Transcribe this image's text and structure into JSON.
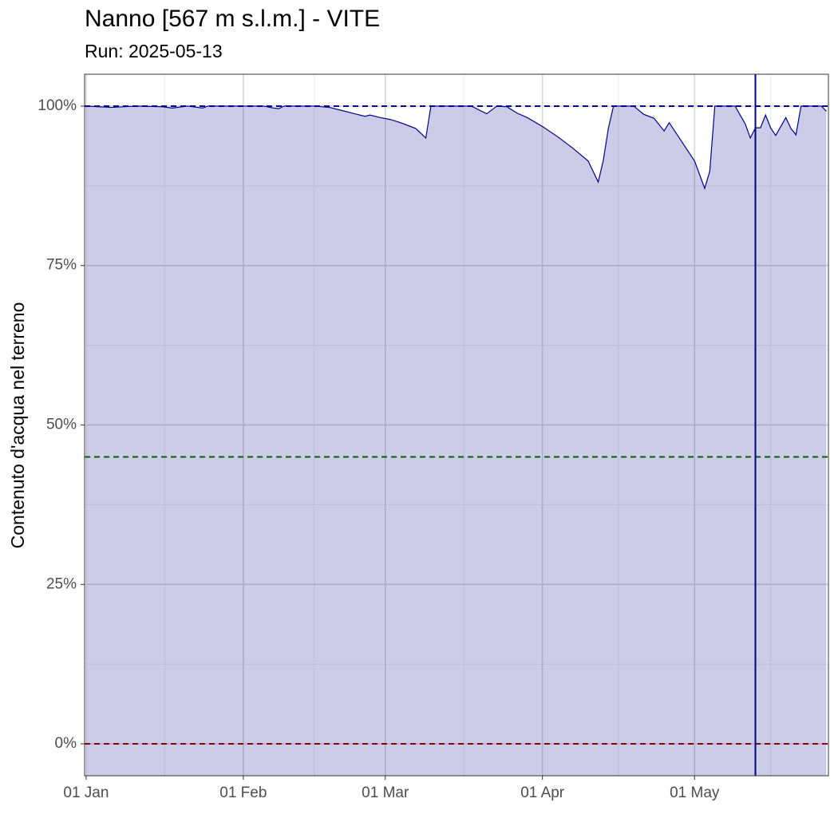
{
  "chart_data": {
    "type": "area",
    "title": "Nanno [567 m s.l.m.] - VITE",
    "subtitle": "Run: 2025-05-13",
    "y_label": "Contenuto d'acqua nel terreno",
    "x": [
      0,
      5,
      10,
      15,
      17,
      20,
      23,
      24,
      25,
      31,
      35,
      37,
      38,
      39,
      45,
      48,
      50,
      53,
      55,
      56,
      58,
      60,
      62,
      65,
      67,
      68,
      76,
      79,
      81,
      83,
      85,
      87,
      90,
      93,
      96,
      99,
      101,
      102,
      103,
      104,
      108,
      110,
      112,
      114,
      115,
      117,
      120,
      122,
      123,
      124,
      128,
      130,
      131,
      132,
      133,
      134,
      135,
      136,
      138,
      139,
      140,
      141,
      145,
      146
    ],
    "values": [
      100,
      99.8,
      100,
      99.9,
      99.7,
      100,
      99.7,
      100,
      100,
      100,
      100,
      99.7,
      99.6,
      100,
      100,
      99.8,
      99.4,
      98.8,
      98.4,
      98.6,
      98.2,
      97.9,
      97.4,
      96.5,
      95.0,
      100,
      100,
      98.8,
      100,
      99.9,
      98.9,
      98.2,
      96.8,
      95.2,
      93.4,
      91.4,
      88.1,
      91.5,
      96.5,
      100,
      100,
      98.7,
      98.1,
      96.1,
      97.4,
      95.0,
      91.4,
      87.1,
      89.8,
      100,
      100,
      97.2,
      95.0,
      96.6,
      96.6,
      98.6,
      96.6,
      95.4,
      98.2,
      96.5,
      95.5,
      100,
      100,
      99.2
    ],
    "color": "#00008b",
    "fill": "rgba(0,0,139,0.2)",
    "xlim": [
      -0.3,
      146.4
    ],
    "xticks": [
      {
        "value": 0,
        "label": "01 Jan"
      },
      {
        "value": 31,
        "label": "01 Feb"
      },
      {
        "value": 59,
        "label": "01 Mar"
      },
      {
        "value": 90,
        "label": "01 Apr"
      },
      {
        "value": 120,
        "label": "01 May"
      }
    ],
    "ylim": [
      -5,
      105
    ],
    "yticks": [
      {
        "value": 0,
        "label": "0%"
      },
      {
        "value": 25,
        "label": "25%"
      },
      {
        "value": 50,
        "label": "50%"
      },
      {
        "value": 75,
        "label": "75%"
      },
      {
        "value": 100,
        "label": "100%"
      }
    ],
    "hlines": [
      {
        "value": 100,
        "color": "#00008b"
      },
      {
        "value": 45,
        "color": "#006400"
      },
      {
        "value": 0,
        "color": "#8b0000"
      }
    ],
    "vline": {
      "value": 132,
      "color": "#00008b"
    },
    "grid": true
  }
}
